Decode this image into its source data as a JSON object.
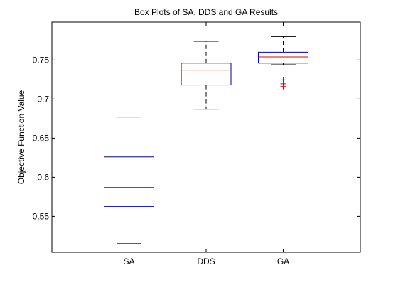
{
  "chart_data": {
    "type": "box",
    "title": "Box Plots of SA, DDS and GA Results",
    "xlabel": "",
    "ylabel": "Objective Function Value",
    "categories": [
      "SA",
      "DDS",
      "GA"
    ],
    "ylim": [
      0.504,
      0.7985
    ],
    "yticks": [
      0.55,
      0.6,
      0.65,
      0.7,
      0.75
    ],
    "ytick_labels": [
      "0.55",
      "0.6",
      "0.65",
      "0.7",
      "0.75"
    ],
    "grid": false,
    "boxes": [
      {
        "category": "SA",
        "whisker_low": 0.515,
        "q1": 0.5625,
        "median": 0.587,
        "q3": 0.626,
        "whisker_high": 0.677,
        "outliers": []
      },
      {
        "category": "DDS",
        "whisker_low": 0.687,
        "q1": 0.718,
        "median": 0.737,
        "q3": 0.746,
        "whisker_high": 0.774,
        "outliers": []
      },
      {
        "category": "GA",
        "whisker_low": 0.744,
        "q1": 0.746,
        "median": 0.754,
        "q3": 0.76,
        "whisker_high": 0.78,
        "outliers": [
          0.7245,
          0.7195,
          0.716
        ]
      }
    ],
    "colors": {
      "box": "#0000a0",
      "median": "#e00000",
      "whisker": "#000000",
      "outlier": "#e00000",
      "axes": "#000000"
    }
  }
}
